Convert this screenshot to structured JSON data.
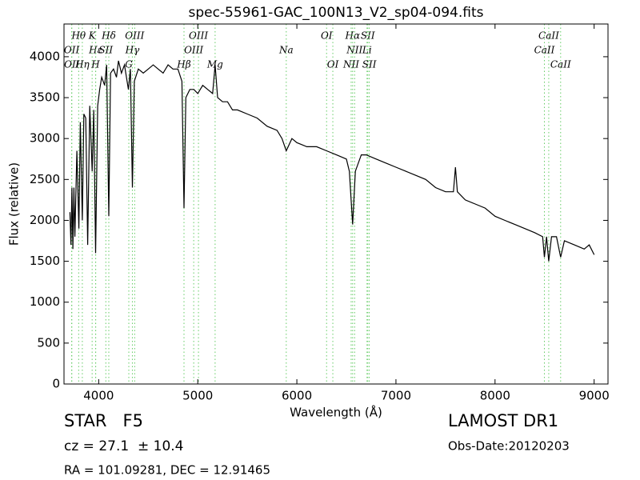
{
  "chart_data": {
    "type": "line",
    "title": "spec-55961-GAC_100N13_V2_sp04-094.fits",
    "xlabel": "Wavelength (Å)",
    "ylabel": "Flux (relative)",
    "xlim": [
      3650,
      9140
    ],
    "ylim": [
      0,
      4400
    ],
    "xticks": [
      4000,
      5000,
      6000,
      7000,
      8000,
      9000
    ],
    "yticks": [
      0,
      500,
      1000,
      1500,
      2000,
      2500,
      3000,
      3500,
      4000
    ],
    "color": "#000000",
    "line_color": "#66cc66",
    "x": [
      3710,
      3720,
      3730,
      3740,
      3750,
      3760,
      3780,
      3800,
      3815,
      3835,
      3850,
      3870,
      3889,
      3910,
      3934,
      3950,
      3969,
      3990,
      4010,
      4030,
      4060,
      4080,
      4102,
      4120,
      4150,
      4180,
      4200,
      4230,
      4260,
      4300,
      4320,
      4340,
      4360,
      4400,
      4450,
      4500,
      4550,
      4600,
      4650,
      4700,
      4750,
      4800,
      4840,
      4861,
      4880,
      4920,
      4960,
      5000,
      5050,
      5100,
      5150,
      5175,
      5200,
      5250,
      5300,
      5350,
      5400,
      5500,
      5600,
      5700,
      5800,
      5850,
      5893,
      5950,
      6000,
      6100,
      6200,
      6300,
      6400,
      6500,
      6530,
      6563,
      6590,
      6650,
      6700,
      6800,
      6900,
      7000,
      7100,
      7200,
      7300,
      7400,
      7500,
      7580,
      7600,
      7620,
      7700,
      7800,
      7900,
      8000,
      8100,
      8200,
      8300,
      8400,
      8480,
      8498,
      8520,
      8542,
      8570,
      8620,
      8662,
      8700,
      8800,
      8900,
      8950,
      9000
    ],
    "values": [
      2100,
      1700,
      2400,
      1650,
      2400,
      1800,
      2850,
      1900,
      3200,
      2000,
      3300,
      3250,
      1700,
      3400,
      2600,
      3350,
      1600,
      3400,
      3600,
      3750,
      3650,
      3900,
      2050,
      3800,
      3850,
      3750,
      3950,
      3800,
      3900,
      3600,
      3850,
      2400,
      3700,
      3850,
      3800,
      3850,
      3900,
      3850,
      3800,
      3900,
      3850,
      3850,
      3700,
      2150,
      3500,
      3600,
      3600,
      3550,
      3650,
      3600,
      3550,
      3900,
      3500,
      3450,
      3450,
      3350,
      3350,
      3300,
      3250,
      3150,
      3100,
      3000,
      2850,
      3000,
      2950,
      2900,
      2900,
      2850,
      2800,
      2750,
      2600,
      1950,
      2600,
      2800,
      2800,
      2750,
      2700,
      2650,
      2600,
      2550,
      2500,
      2400,
      2350,
      2350,
      2650,
      2350,
      2250,
      2200,
      2150,
      2050,
      2000,
      1950,
      1900,
      1850,
      1800,
      1550,
      1800,
      1500,
      1800,
      1800,
      1550,
      1750,
      1700,
      1650,
      1700,
      1580
    ],
    "lines": [
      [
        {
          "label": "Hθ",
          "wavelength": 3798
        },
        {
          "label": "K",
          "wavelength": 3934
        },
        {
          "label": "Hδ",
          "wavelength": 4102
        },
        {
          "label": "OIII",
          "wavelength": 4363
        },
        {
          "label": "OIII",
          "wavelength": 5007
        },
        {
          "label": "OI",
          "wavelength": 6300
        },
        {
          "label": "Hα",
          "wavelength": 6563
        },
        {
          "label": "SII",
          "wavelength": 6716
        },
        {
          "label": "CaII",
          "wavelength": 8542
        }
      ],
      [
        {
          "label": "OII",
          "wavelength": 3727
        },
        {
          "label": "Hε",
          "wavelength": 3970
        },
        {
          "label": "SII",
          "wavelength": 4072
        },
        {
          "label": "Hγ",
          "wavelength": 4340
        },
        {
          "label": "OIII",
          "wavelength": 4959
        },
        {
          "label": "Na",
          "wavelength": 5893
        },
        {
          "label": "NII",
          "wavelength": 6583
        },
        {
          "label": "Li",
          "wavelength": 6708
        },
        {
          "label": "CaII",
          "wavelength": 8498
        }
      ],
      [
        {
          "label": "OII",
          "wavelength": 3729
        },
        {
          "label": "Hη",
          "wavelength": 3835
        },
        {
          "label": "H",
          "wavelength": 3969
        },
        {
          "label": "G",
          "wavelength": 4304
        },
        {
          "label": "Hβ",
          "wavelength": 4861
        },
        {
          "label": "Mg",
          "wavelength": 5175
        },
        {
          "label": "OI",
          "wavelength": 6363
        },
        {
          "label": "NII",
          "wavelength": 6548
        },
        {
          "label": "SII",
          "wavelength": 6731
        },
        {
          "label": "CaII",
          "wavelength": 8662
        }
      ]
    ]
  },
  "info": {
    "object": "STAR   F5",
    "redshift": "cz = 27.1  ± 10.4",
    "coords": "RA = 101.09281, DEC = 12.91465",
    "survey": "LAMOST DR1",
    "date": "Obs-Date:20120203"
  }
}
